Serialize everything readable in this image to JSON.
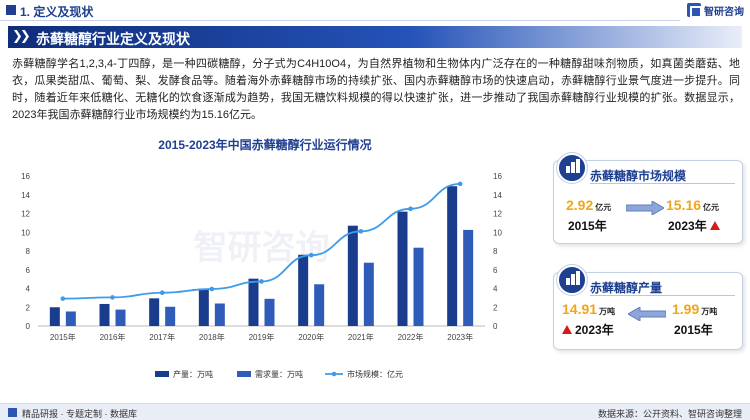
{
  "section": {
    "label": "1. 定义及现状"
  },
  "logo": {
    "text": "智研咨询"
  },
  "banner": {
    "title": "赤藓糖醇行业定义及现状"
  },
  "intro": {
    "text": "赤藓糖醇学名1,2,3,4-丁四醇，是一种四碳糖醇，分子式为C4H10O4，为自然界植物和生物体内广泛存在的一种糖醇甜味剂物质，如真菌类蘑菇、地衣，瓜果类甜瓜、葡萄、梨、发酵食品等。随着海外赤藓糖醇市场的持续扩张、国内赤藓糖醇市场的快速启动，赤藓糖醇行业景气度进一步提升。同时，随着近年来低糖化、无糖化的饮食逐渐成为趋势，我国无糖饮料规模的得以快速扩张，进一步推动了我国赤藓糖醇行业规模的扩张。数据显示，2023年我国赤藓糖醇行业市场规模约为15.16亿元。"
  },
  "chart_data": {
    "type": "bar",
    "title": "2015-2023年中国赤藓糖醇行业运行情况",
    "categories": [
      "2015年",
      "2016年",
      "2017年",
      "2018年",
      "2019年",
      "2020年",
      "2021年",
      "2022年",
      "2023年"
    ],
    "series": [
      {
        "name": "产量：万吨",
        "type": "bar",
        "axis": "left",
        "color": "#1a3c8c",
        "values": [
          2.0,
          2.35,
          2.95,
          4.0,
          5.05,
          7.6,
          10.7,
          12.2,
          14.91
        ]
      },
      {
        "name": "需求量：万吨",
        "type": "bar",
        "axis": "left",
        "color": "#2f5bb9",
        "values": [
          1.55,
          1.75,
          2.05,
          2.4,
          2.9,
          4.45,
          6.75,
          8.35,
          10.25
        ]
      },
      {
        "name": "市场规模：亿元",
        "type": "line",
        "axis": "right",
        "color": "#3d9be9",
        "values": [
          2.92,
          3.05,
          3.55,
          3.95,
          4.75,
          7.55,
          10.1,
          12.5,
          15.16
        ]
      }
    ],
    "ylim": [
      0,
      16
    ],
    "y2lim": [
      0,
      16
    ],
    "yticks": [
      0,
      2,
      4,
      6,
      8,
      10,
      12,
      14,
      16
    ],
    "y2ticks": [
      0,
      2,
      4,
      6,
      8,
      10,
      12,
      14,
      16
    ],
    "legend": "bottom",
    "grid": false,
    "watermark": "智研咨询"
  },
  "market_card": {
    "title": "赤藓糖醇市场规模",
    "from_value": "2.92",
    "from_unit": "亿元",
    "from_year": "2015年",
    "to_value": "15.16",
    "to_unit": "亿元",
    "to_year": "2023年"
  },
  "output_card": {
    "title": "赤藓糖醇产量",
    "now_value": "14.91",
    "now_unit": "万吨",
    "now_year": "2023年",
    "past_value": "1.99",
    "past_unit": "万吨",
    "past_year": "2015年"
  },
  "footer": {
    "left": "精品研报 · 专题定制 · 数据库",
    "right": "数据来源：公开资料、智研咨询整理"
  },
  "colors": {
    "brand": "#1f3f8f",
    "accent": "#f0a51c",
    "up": "#d41b1b"
  }
}
